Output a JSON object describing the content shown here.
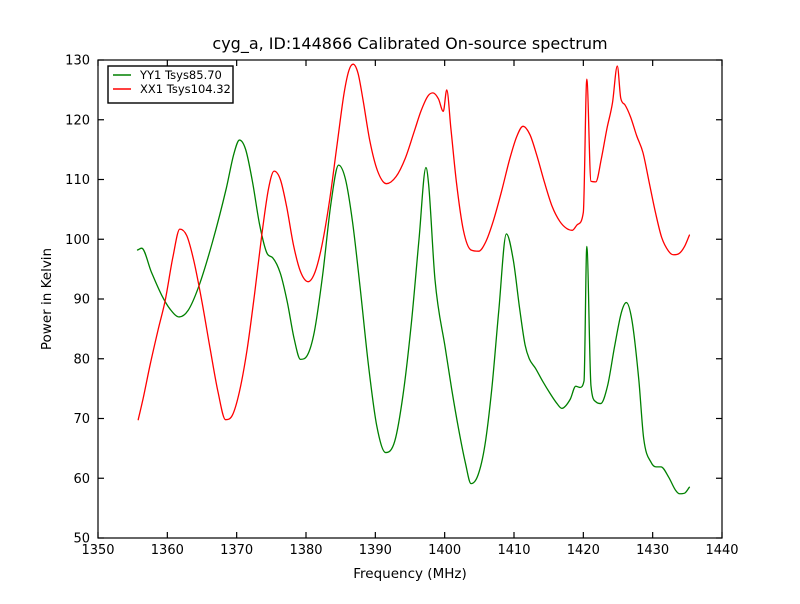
{
  "figure": {
    "title": "cyg_a, ID:144866 Calibrated On-source spectrum",
    "xlabel": "Frequency (MHz)",
    "ylabel": "Power in Kelvin"
  },
  "legend": {
    "position": "upper left",
    "items": [
      {
        "label": "YY1 Tsys85.70",
        "color": "#008000"
      },
      {
        "label": "XX1 Tsys104.32",
        "color": "#ff0000"
      }
    ]
  },
  "chart_data": {
    "type": "line",
    "title": "cyg_a, ID:144866 Calibrated On-source spectrum",
    "xlabel": "Frequency (MHz)",
    "ylabel": "Power in Kelvin",
    "xlim": [
      1350,
      1440
    ],
    "ylim": [
      50,
      130
    ],
    "xticks": [
      1350,
      1360,
      1370,
      1380,
      1390,
      1400,
      1410,
      1420,
      1430,
      1440
    ],
    "yticks": [
      50,
      60,
      70,
      80,
      90,
      100,
      110,
      120,
      130
    ],
    "grid": false,
    "legend_position": "upper left",
    "series": [
      {
        "name": "YY1 Tsys85.70",
        "color": "#008000",
        "points": [
          [
            1355.7,
            98.2
          ],
          [
            1356.3,
            98.5
          ],
          [
            1357.7,
            94.5
          ],
          [
            1359.2,
            90.6
          ],
          [
            1360.4,
            88.3
          ],
          [
            1361.7,
            87.0
          ],
          [
            1363.0,
            88.1
          ],
          [
            1364.5,
            92.0
          ],
          [
            1366.5,
            99.5
          ],
          [
            1368.5,
            108.5
          ],
          [
            1369.6,
            114.3
          ],
          [
            1370.4,
            116.6
          ],
          [
            1371.3,
            115.0
          ],
          [
            1372.3,
            109.5
          ],
          [
            1373.3,
            102.5
          ],
          [
            1374.4,
            97.6
          ],
          [
            1375.2,
            96.9
          ],
          [
            1376.3,
            94.3
          ],
          [
            1377.3,
            89.5
          ],
          [
            1378.3,
            83.3
          ],
          [
            1379.2,
            79.9
          ],
          [
            1380.2,
            80.6
          ],
          [
            1381.2,
            84.5
          ],
          [
            1382.4,
            94.0
          ],
          [
            1383.6,
            106.0
          ],
          [
            1384.7,
            112.4
          ],
          [
            1385.7,
            110.0
          ],
          [
            1386.7,
            103.0
          ],
          [
            1387.8,
            92.0
          ],
          [
            1389.0,
            79.0
          ],
          [
            1390.2,
            68.8
          ],
          [
            1391.5,
            64.3
          ],
          [
            1392.8,
            66.2
          ],
          [
            1394.0,
            74.0
          ],
          [
            1395.2,
            86.0
          ],
          [
            1396.3,
            100.0
          ],
          [
            1397.3,
            112.0
          ],
          [
            1397.7,
            109.0
          ],
          [
            1398.6,
            93.3
          ],
          [
            1400.1,
            81.7
          ],
          [
            1401.0,
            75.0
          ],
          [
            1402.0,
            68.3
          ],
          [
            1403.0,
            62.5
          ],
          [
            1403.8,
            59.1
          ],
          [
            1404.8,
            60.5
          ],
          [
            1405.8,
            65.5
          ],
          [
            1406.8,
            75.0
          ],
          [
            1407.8,
            88.0
          ],
          [
            1408.9,
            100.9
          ],
          [
            1409.9,
            96.5
          ],
          [
            1410.8,
            88.5
          ],
          [
            1411.6,
            82.3
          ],
          [
            1412.2,
            80.0
          ],
          [
            1413.1,
            78.4
          ],
          [
            1414.1,
            76.3
          ],
          [
            1415.2,
            74.2
          ],
          [
            1416.2,
            72.5
          ],
          [
            1416.9,
            71.7
          ],
          [
            1418.1,
            73.2
          ],
          [
            1418.9,
            75.4
          ],
          [
            1419.5,
            75.2
          ],
          [
            1420.1,
            76.3
          ],
          [
            1420.5,
            98.8
          ],
          [
            1421.1,
            75.5
          ],
          [
            1421.8,
            72.8
          ],
          [
            1422.5,
            72.5
          ],
          [
            1423.5,
            75.5
          ],
          [
            1424.5,
            82.0
          ],
          [
            1425.5,
            87.8
          ],
          [
            1426.2,
            89.4
          ],
          [
            1427.0,
            86.5
          ],
          [
            1428.0,
            76.5
          ],
          [
            1428.7,
            66.7
          ],
          [
            1429.8,
            62.6
          ],
          [
            1430.5,
            61.9
          ],
          [
            1431.2,
            61.9
          ],
          [
            1432.3,
            60.2
          ],
          [
            1433.3,
            58.0
          ],
          [
            1433.9,
            57.4
          ],
          [
            1434.6,
            57.5
          ],
          [
            1435.3,
            58.5
          ]
        ]
      },
      {
        "name": "XX1 Tsys104.32",
        "color": "#ff0000",
        "points": [
          [
            1355.8,
            69.8
          ],
          [
            1356.5,
            73.3
          ],
          [
            1357.5,
            78.9
          ],
          [
            1358.7,
            85.0
          ],
          [
            1359.7,
            89.8
          ],
          [
            1360.8,
            97.0
          ],
          [
            1361.8,
            101.7
          ],
          [
            1362.8,
            100.6
          ],
          [
            1363.8,
            96.5
          ],
          [
            1365.0,
            89.5
          ],
          [
            1366.2,
            81.5
          ],
          [
            1367.3,
            74.5
          ],
          [
            1368.4,
            69.8
          ],
          [
            1369.4,
            70.6
          ],
          [
            1370.4,
            74.5
          ],
          [
            1371.5,
            81.5
          ],
          [
            1372.6,
            91.0
          ],
          [
            1373.6,
            100.5
          ],
          [
            1374.6,
            108.5
          ],
          [
            1375.4,
            111.4
          ],
          [
            1376.3,
            110.0
          ],
          [
            1377.2,
            105.5
          ],
          [
            1378.2,
            99.0
          ],
          [
            1379.2,
            94.6
          ],
          [
            1380.3,
            92.9
          ],
          [
            1381.3,
            94.5
          ],
          [
            1382.3,
            99.0
          ],
          [
            1383.4,
            106.5
          ],
          [
            1384.5,
            116.0
          ],
          [
            1385.5,
            124.5
          ],
          [
            1386.2,
            128.3
          ],
          [
            1386.8,
            129.3
          ],
          [
            1387.5,
            127.8
          ],
          [
            1388.2,
            123.5
          ],
          [
            1389.2,
            116.5
          ],
          [
            1390.3,
            111.5
          ],
          [
            1391.6,
            109.3
          ],
          [
            1393.0,
            110.5
          ],
          [
            1394.3,
            113.5
          ],
          [
            1395.6,
            118.0
          ],
          [
            1396.6,
            121.5
          ],
          [
            1397.6,
            124.0
          ],
          [
            1398.3,
            124.5
          ],
          [
            1399.1,
            123.5
          ],
          [
            1399.8,
            121.4
          ],
          [
            1400.3,
            125.0
          ],
          [
            1400.9,
            118.5
          ],
          [
            1401.7,
            109.5
          ],
          [
            1402.7,
            101.5
          ],
          [
            1403.8,
            98.2
          ],
          [
            1404.9,
            98.0
          ],
          [
            1405.9,
            99.5
          ],
          [
            1407.0,
            103.0
          ],
          [
            1408.2,
            108.0
          ],
          [
            1409.4,
            113.5
          ],
          [
            1410.4,
            117.2
          ],
          [
            1411.3,
            118.9
          ],
          [
            1412.3,
            117.5
          ],
          [
            1413.3,
            114.0
          ],
          [
            1414.4,
            109.5
          ],
          [
            1415.5,
            105.5
          ],
          [
            1416.6,
            103.0
          ],
          [
            1417.6,
            101.8
          ],
          [
            1418.4,
            101.5
          ],
          [
            1419.2,
            102.5
          ],
          [
            1420.0,
            104.5
          ],
          [
            1420.5,
            126.8
          ],
          [
            1421.1,
            109.7
          ],
          [
            1421.8,
            109.6
          ],
          [
            1422.6,
            113.5
          ],
          [
            1423.4,
            118.5
          ],
          [
            1424.2,
            122.8
          ],
          [
            1424.9,
            129.0
          ],
          [
            1425.4,
            123.6
          ],
          [
            1426.0,
            122.5
          ],
          [
            1426.8,
            120.5
          ],
          [
            1427.7,
            117.3
          ],
          [
            1428.6,
            114.5
          ],
          [
            1429.5,
            109.5
          ],
          [
            1430.4,
            104.5
          ],
          [
            1431.3,
            100.3
          ],
          [
            1432.3,
            98.0
          ],
          [
            1433.0,
            97.4
          ],
          [
            1433.8,
            97.6
          ],
          [
            1434.6,
            98.8
          ],
          [
            1435.3,
            100.7
          ]
        ]
      }
    ]
  }
}
